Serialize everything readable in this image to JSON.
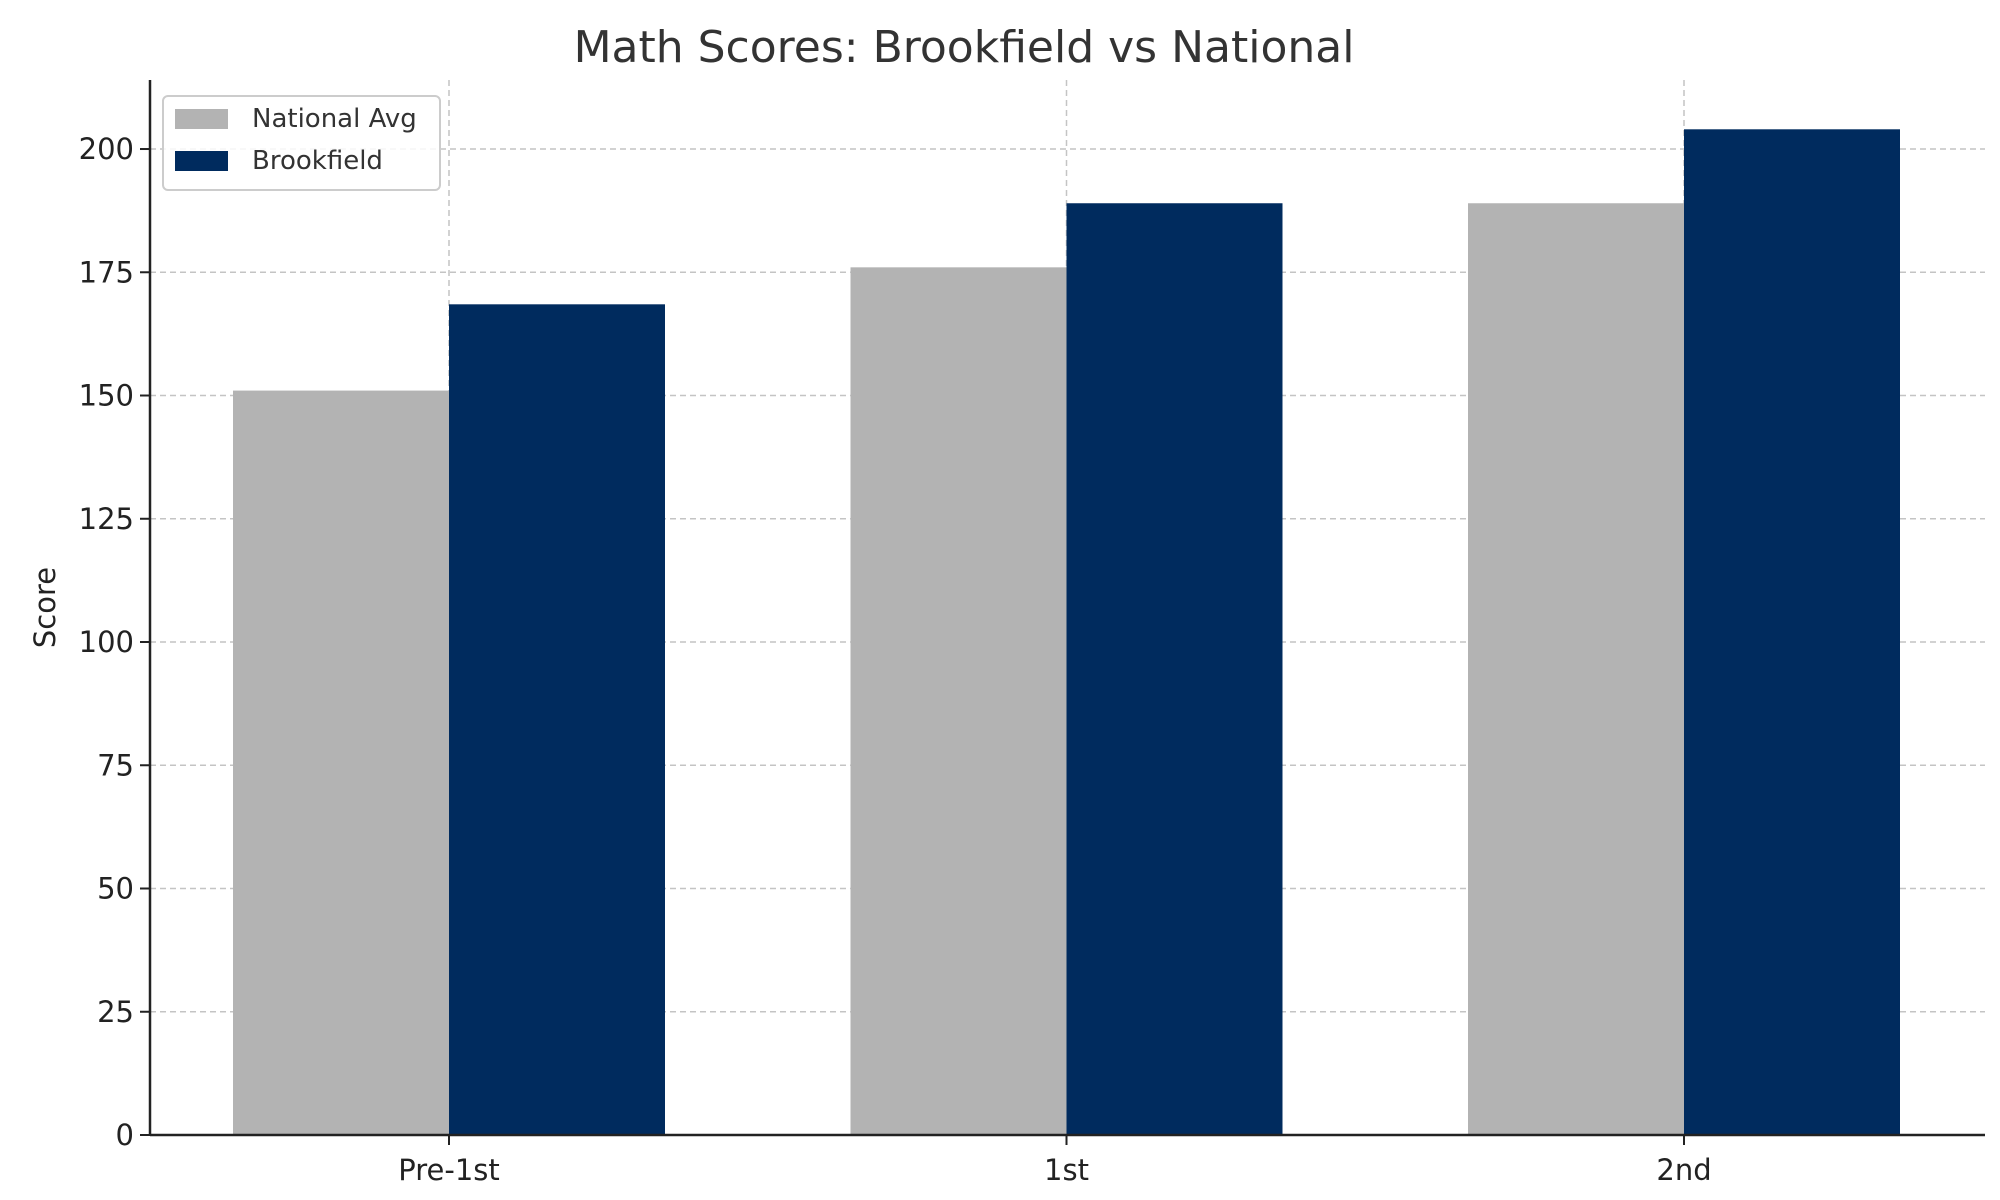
{
  "chart_data": {
    "type": "bar",
    "title": "Math Scores: Brookfield vs National",
    "xlabel": "",
    "ylabel": "Score",
    "categories": [
      "Pre-1st",
      "1st",
      "2nd"
    ],
    "series": [
      {
        "name": "National Avg",
        "values": [
          151,
          176,
          189
        ],
        "color": "#b3b3b3"
      },
      {
        "name": "Brookfield",
        "values": [
          168.5,
          189,
          204
        ],
        "color": "#002b5e"
      }
    ],
    "ylim": [
      0,
      214
    ],
    "yticks": [
      0,
      25,
      50,
      75,
      100,
      125,
      150,
      175,
      200
    ],
    "grid": true,
    "legend_position": "top-left"
  }
}
